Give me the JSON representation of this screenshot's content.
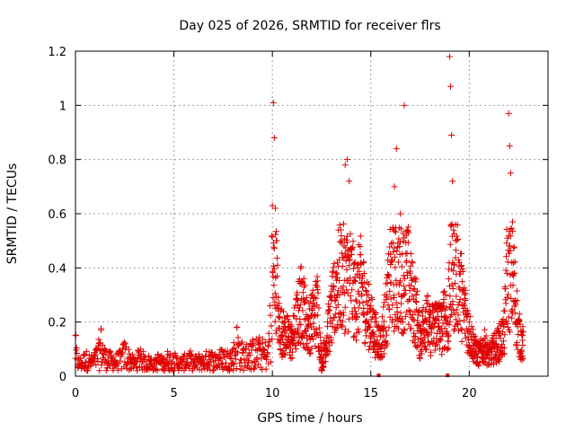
{
  "chart_data": {
    "type": "scatter",
    "title": "Day 025 of 2026, SRMTID for receiver flrs",
    "xlabel": "GPS time / hours",
    "ylabel": "SRMTID / TECUs",
    "xlim": [
      0,
      24
    ],
    "ylim": [
      0,
      1.2
    ],
    "xticks": [
      "0",
      "5",
      "10",
      "15",
      "20"
    ],
    "yticks": [
      "0",
      "0.2",
      "0.4",
      "0.6",
      "0.8",
      "1",
      "1.2"
    ],
    "grid": true,
    "marker": "+",
    "color": "#e00000",
    "series": [
      {
        "name": "SRMTID",
        "points": [
          [
            0.0,
            0.15
          ],
          [
            0.1,
            0.06
          ],
          [
            0.3,
            0.05
          ],
          [
            0.5,
            0.08
          ],
          [
            0.8,
            0.06
          ],
          [
            1.0,
            0.08
          ],
          [
            1.2,
            0.12
          ],
          [
            1.3,
            0.17
          ],
          [
            1.5,
            0.09
          ],
          [
            1.8,
            0.07
          ],
          [
            2.0,
            0.06
          ],
          [
            2.3,
            0.08
          ],
          [
            2.5,
            0.12
          ],
          [
            2.8,
            0.07
          ],
          [
            3.0,
            0.05
          ],
          [
            3.3,
            0.1
          ],
          [
            3.5,
            0.06
          ],
          [
            3.8,
            0.06
          ],
          [
            4.0,
            0.04
          ],
          [
            4.2,
            0.07
          ],
          [
            4.5,
            0.05
          ],
          [
            4.7,
            0.08
          ],
          [
            5.0,
            0.07
          ],
          [
            5.3,
            0.05
          ],
          [
            5.5,
            0.06
          ],
          [
            5.8,
            0.08
          ],
          [
            6.0,
            0.05
          ],
          [
            6.3,
            0.07
          ],
          [
            6.5,
            0.06
          ],
          [
            6.8,
            0.09
          ],
          [
            7.0,
            0.07
          ],
          [
            7.3,
            0.08
          ],
          [
            7.5,
            0.09
          ],
          [
            7.8,
            0.08
          ],
          [
            8.0,
            0.1
          ],
          [
            8.2,
            0.18
          ],
          [
            8.5,
            0.1
          ],
          [
            8.8,
            0.11
          ],
          [
            9.0,
            0.12
          ],
          [
            9.3,
            0.13
          ],
          [
            9.5,
            0.12
          ],
          [
            9.8,
            0.11
          ],
          [
            10.0,
            0.63
          ],
          [
            10.05,
            1.01
          ],
          [
            10.1,
            0.88
          ],
          [
            10.15,
            0.62
          ],
          [
            10.2,
            0.5
          ],
          [
            10.3,
            0.25
          ],
          [
            10.5,
            0.2
          ],
          [
            10.8,
            0.18
          ],
          [
            11.0,
            0.16
          ],
          [
            11.3,
            0.28
          ],
          [
            11.5,
            0.35
          ],
          [
            11.8,
            0.22
          ],
          [
            12.0,
            0.25
          ],
          [
            12.3,
            0.32
          ],
          [
            12.5,
            0.05
          ],
          [
            12.8,
            0.2
          ],
          [
            13.0,
            0.28
          ],
          [
            13.3,
            0.42
          ],
          [
            13.5,
            0.5
          ],
          [
            13.7,
            0.78
          ],
          [
            13.8,
            0.8
          ],
          [
            13.9,
            0.72
          ],
          [
            14.0,
            0.45
          ],
          [
            14.2,
            0.35
          ],
          [
            14.5,
            0.42
          ],
          [
            14.8,
            0.3
          ],
          [
            15.0,
            0.25
          ],
          [
            15.2,
            0.2
          ],
          [
            15.5,
            0.15
          ],
          [
            15.8,
            0.3
          ],
          [
            16.0,
            0.45
          ],
          [
            16.2,
            0.7
          ],
          [
            16.3,
            0.84
          ],
          [
            16.5,
            0.6
          ],
          [
            16.7,
            1.0
          ],
          [
            16.8,
            0.52
          ],
          [
            17.0,
            0.38
          ],
          [
            17.3,
            0.3
          ],
          [
            17.5,
            0.17
          ],
          [
            17.8,
            0.28
          ],
          [
            18.0,
            0.2
          ],
          [
            18.3,
            0.25
          ],
          [
            18.6,
            0.22
          ],
          [
            18.8,
            0.3
          ],
          [
            18.95,
            0.15
          ],
          [
            19.0,
            1.18
          ],
          [
            19.05,
            1.07
          ],
          [
            19.1,
            0.89
          ],
          [
            19.15,
            0.72
          ],
          [
            19.3,
            0.56
          ],
          [
            19.5,
            0.42
          ],
          [
            19.8,
            0.28
          ],
          [
            20.0,
            0.2
          ],
          [
            20.3,
            0.12
          ],
          [
            20.5,
            0.1
          ],
          [
            20.8,
            0.14
          ],
          [
            21.0,
            0.09
          ],
          [
            21.2,
            0.12
          ],
          [
            21.5,
            0.15
          ],
          [
            21.8,
            0.2
          ],
          [
            22.0,
            0.97
          ],
          [
            22.05,
            0.85
          ],
          [
            22.1,
            0.75
          ],
          [
            22.2,
            0.57
          ],
          [
            22.3,
            0.38
          ],
          [
            22.5,
            0.2
          ],
          [
            22.7,
            0.15
          ]
        ]
      }
    ]
  }
}
